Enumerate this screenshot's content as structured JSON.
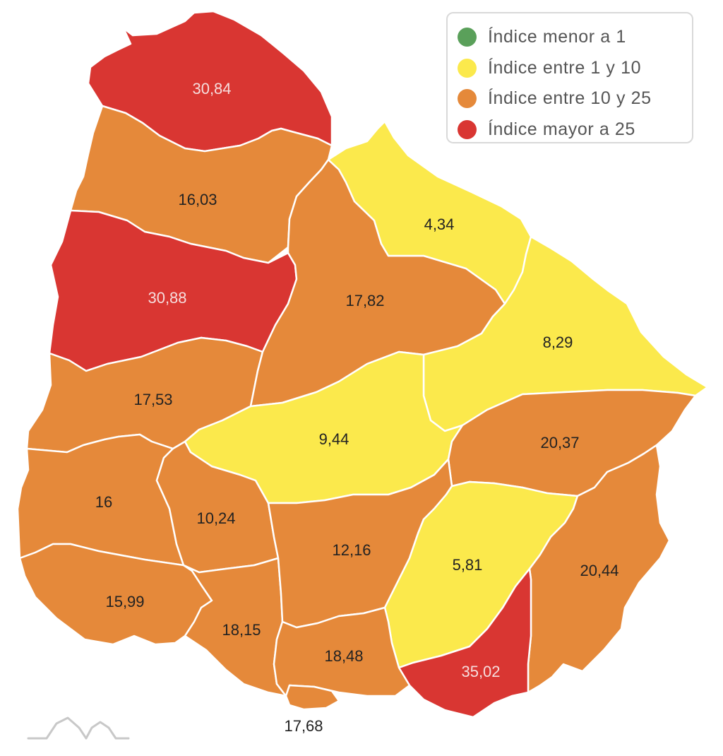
{
  "colors": {
    "green": "#5aa05a",
    "yellow": "#fbe94c",
    "orange": "#e5893a",
    "red": "#d93632"
  },
  "legend": {
    "items": [
      {
        "label": "Índice menor a 1",
        "color": "#5aa05a"
      },
      {
        "label": "Índice entre 1 y 10",
        "color": "#fbe94c"
      },
      {
        "label": "Índice entre 10 y 25",
        "color": "#e5893a"
      },
      {
        "label": "Índice mayor a 25",
        "color": "#d93632"
      }
    ]
  },
  "departments": [
    {
      "id": "artigas",
      "value": "30,84",
      "category": "red"
    },
    {
      "id": "salto",
      "value": "16,03",
      "category": "orange"
    },
    {
      "id": "paysandu",
      "value": "30,88",
      "category": "red"
    },
    {
      "id": "rio-negro",
      "value": "17,53",
      "category": "orange"
    },
    {
      "id": "soriano",
      "value": "16",
      "category": "orange"
    },
    {
      "id": "colonia",
      "value": "15,99",
      "category": "orange"
    },
    {
      "id": "flores",
      "value": "10,24",
      "category": "orange"
    },
    {
      "id": "san-jose",
      "value": "18,15",
      "category": "orange"
    },
    {
      "id": "tacuarembo",
      "value": "17,82",
      "category": "orange"
    },
    {
      "id": "rivera",
      "value": "4,34",
      "category": "yellow"
    },
    {
      "id": "cerro-largo",
      "value": "8,29",
      "category": "yellow"
    },
    {
      "id": "durazno",
      "value": "9,44",
      "category": "yellow"
    },
    {
      "id": "treinta-y-tres",
      "value": "20,37",
      "category": "orange"
    },
    {
      "id": "florida",
      "value": "12,16",
      "category": "orange"
    },
    {
      "id": "lavalleja",
      "value": "5,81",
      "category": "yellow"
    },
    {
      "id": "rocha",
      "value": "20,44",
      "category": "orange"
    },
    {
      "id": "maldonado",
      "value": "35,02",
      "category": "red"
    },
    {
      "id": "canelones",
      "value": "18,48",
      "category": "orange"
    },
    {
      "id": "montevideo",
      "value": "17,68",
      "category": "orange"
    }
  ]
}
